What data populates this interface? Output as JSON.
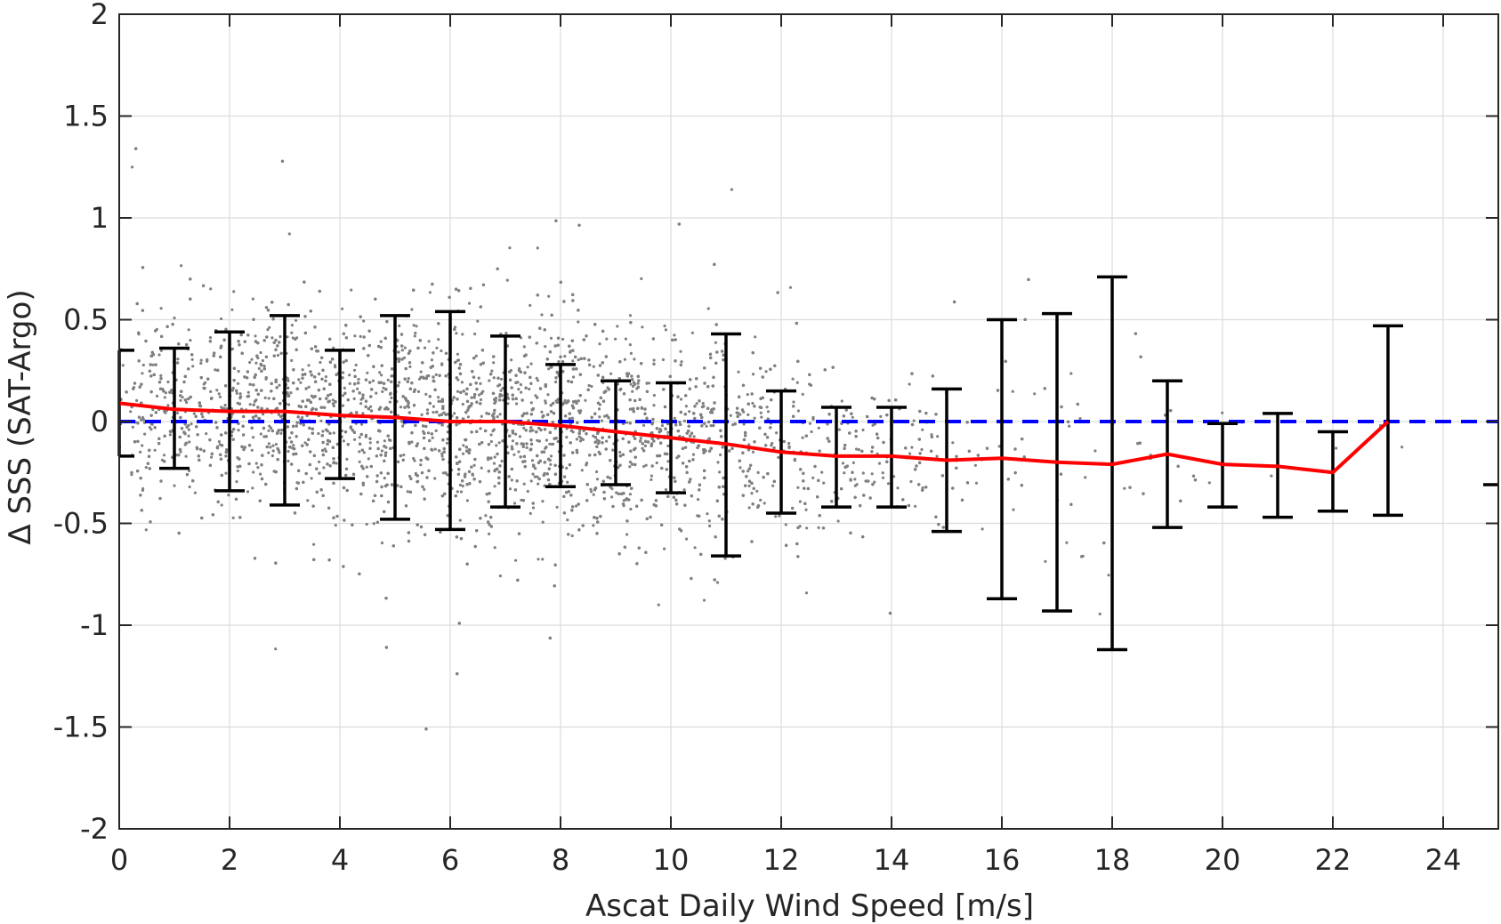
{
  "chart_data": {
    "type": "scatter",
    "xlabel": "Ascat Daily Wind Speed [m/s]",
    "ylabel": "Δ SSS (SAT-Argo)",
    "xlim": [
      0,
      25
    ],
    "ylim": [
      -2,
      2
    ],
    "xticks": [
      "0",
      "2",
      "4",
      "6",
      "8",
      "10",
      "12",
      "14",
      "16",
      "18",
      "20",
      "22",
      "24"
    ],
    "yticks": [
      "2",
      "1.5",
      "1",
      "0.5",
      "0",
      "-0.5",
      "-1",
      "-1.5",
      "-2"
    ],
    "grid": true,
    "colors": {
      "scatter": "#808080",
      "mean_line": "#ff0000",
      "zero_line": "#0000ff",
      "error_bars": "#000000"
    },
    "zero_reference": {
      "y": 0,
      "style": "dashed"
    },
    "series": [
      {
        "kind": "mean_with_error_bars",
        "x": [
          0,
          1,
          2,
          3,
          4,
          5,
          6,
          7,
          8,
          9,
          10,
          11,
          12,
          13,
          14,
          15,
          16,
          17,
          18,
          19,
          20,
          21,
          22,
          23
        ],
        "mean": [
          0.09,
          0.06,
          0.05,
          0.05,
          0.03,
          0.02,
          0.0,
          0.0,
          -0.02,
          -0.05,
          -0.08,
          -0.11,
          -0.15,
          -0.17,
          -0.17,
          -0.19,
          -0.18,
          -0.2,
          -0.21,
          -0.16,
          -0.21,
          -0.22,
          -0.25,
          0.0
        ],
        "upper": [
          0.35,
          0.36,
          0.44,
          0.52,
          0.35,
          0.52,
          0.54,
          0.42,
          0.28,
          0.2,
          0.19,
          0.43,
          0.15,
          0.07,
          0.07,
          0.16,
          0.5,
          0.53,
          0.71,
          0.2,
          -0.01,
          0.04,
          -0.05,
          0.47
        ],
        "lower": [
          -0.17,
          -0.23,
          -0.34,
          -0.41,
          -0.28,
          -0.48,
          -0.53,
          -0.42,
          -0.32,
          -0.31,
          -0.35,
          -0.66,
          -0.45,
          -0.42,
          -0.42,
          -0.54,
          -0.87,
          -0.93,
          -1.12,
          -0.52,
          -0.42,
          -0.47,
          -0.44,
          -0.46
        ]
      }
    ],
    "extra_cap": {
      "x": 25,
      "y": -0.31
    }
  }
}
